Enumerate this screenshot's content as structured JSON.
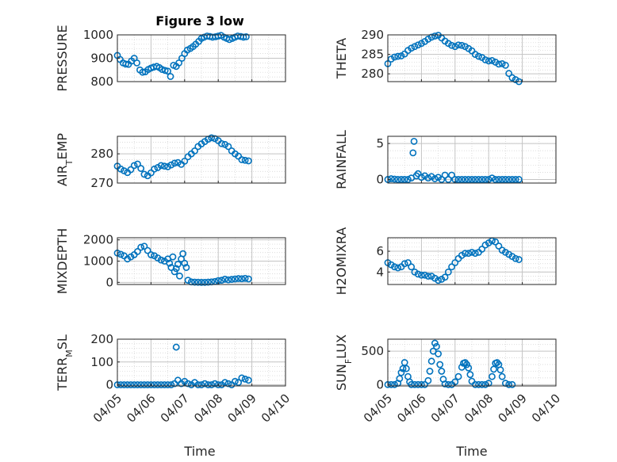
{
  "figure": {
    "title": "Figure 3 low",
    "x_axis_label": "Time",
    "x_tick_labels": [
      "04/05",
      "04/06",
      "04/07",
      "04/08",
      "04/09",
      "04/10"
    ],
    "marker_color": "#0072bd"
  },
  "chart_data": [
    {
      "type": "scatter",
      "ylabel": "PRESSURE",
      "ylim": [
        800,
        1000
      ],
      "yticks": [
        800,
        900,
        1000
      ],
      "grid": true,
      "x": [
        0.0,
        0.08,
        0.17,
        0.25,
        0.33,
        0.42,
        0.5,
        0.58,
        0.67,
        0.75,
        0.83,
        0.92,
        1.0,
        1.08,
        1.17,
        1.25,
        1.33,
        1.42,
        1.5,
        1.58,
        1.67,
        1.75,
        1.83,
        1.92,
        2.0,
        2.08,
        2.17,
        2.25,
        2.33,
        2.42,
        2.5,
        2.58,
        2.67,
        2.75,
        2.83,
        2.92,
        3.0,
        3.08,
        3.17,
        3.25,
        3.33,
        3.42,
        3.5,
        3.58,
        3.67,
        3.75,
        3.83
      ],
      "values": [
        912,
        895,
        880,
        875,
        874,
        888,
        900,
        880,
        850,
        840,
        842,
        852,
        858,
        862,
        865,
        860,
        852,
        848,
        845,
        822,
        870,
        865,
        880,
        900,
        920,
        935,
        942,
        950,
        960,
        972,
        985,
        990,
        995,
        993,
        990,
        992,
        995,
        998,
        990,
        985,
        980,
        985,
        990,
        995,
        993,
        990,
        992
      ]
    },
    {
      "type": "scatter",
      "ylabel": "THETA",
      "ylim": [
        278,
        290
      ],
      "yticks": [
        280,
        285,
        290
      ],
      "grid": true,
      "x": [
        0.0,
        0.1,
        0.2,
        0.3,
        0.4,
        0.5,
        0.6,
        0.7,
        0.8,
        0.9,
        1.0,
        1.1,
        1.2,
        1.3,
        1.4,
        1.5,
        1.6,
        1.7,
        1.8,
        1.9,
        2.0,
        2.1,
        2.2,
        2.3,
        2.4,
        2.5,
        2.6,
        2.7,
        2.8,
        2.9,
        3.0,
        3.1,
        3.2,
        3.3,
        3.4,
        3.5,
        3.6,
        3.7,
        3.8,
        3.9
      ],
      "values": [
        282.6,
        283.8,
        284.3,
        284.5,
        284.6,
        285.1,
        286.0,
        286.6,
        287.0,
        287.4,
        287.8,
        288.3,
        288.9,
        289.4,
        289.7,
        289.9,
        289.2,
        288.4,
        287.8,
        287.3,
        287.0,
        287.4,
        287.3,
        287.0,
        286.5,
        285.9,
        285.0,
        284.5,
        284.2,
        283.6,
        283.3,
        283.4,
        283.0,
        282.5,
        282.6,
        282.2,
        280.1,
        279.0,
        278.5,
        278.0
      ]
    },
    {
      "type": "scatter",
      "ylabel": "AIR_TEMP",
      "ylim": [
        270,
        286
      ],
      "yticks": [
        270,
        280
      ],
      "grid": true,
      "x": [
        0.0,
        0.1,
        0.2,
        0.3,
        0.4,
        0.5,
        0.6,
        0.7,
        0.8,
        0.9,
        1.0,
        1.1,
        1.2,
        1.3,
        1.4,
        1.5,
        1.6,
        1.7,
        1.8,
        1.9,
        2.0,
        2.1,
        2.2,
        2.3,
        2.4,
        2.5,
        2.6,
        2.7,
        2.8,
        2.9,
        3.0,
        3.1,
        3.2,
        3.3,
        3.4,
        3.5,
        3.6,
        3.7,
        3.8,
        3.9
      ],
      "values": [
        275.8,
        274.8,
        274.2,
        273.6,
        274.6,
        276.0,
        276.5,
        275.0,
        273.0,
        272.5,
        273.5,
        274.8,
        275.3,
        276.0,
        275.8,
        275.6,
        276.2,
        276.8,
        277.0,
        276.4,
        277.5,
        279.0,
        280.0,
        281.0,
        282.5,
        283.4,
        284.2,
        285.0,
        285.5,
        285.2,
        284.5,
        283.5,
        283.2,
        282.5,
        281.0,
        280.0,
        279.2,
        278.0,
        277.8,
        277.6
      ]
    },
    {
      "type": "scatter",
      "ylabel": "RAINFALL",
      "ylim": [
        -0.5,
        6
      ],
      "yticks": [
        0,
        5
      ],
      "grid": true,
      "x": [
        0.0,
        0.1,
        0.2,
        0.3,
        0.4,
        0.5,
        0.6,
        0.7,
        0.75,
        0.78,
        0.85,
        0.9,
        1.0,
        1.1,
        1.2,
        1.3,
        1.4,
        1.5,
        1.6,
        1.7,
        1.8,
        1.9,
        2.0,
        2.1,
        2.2,
        2.3,
        2.4,
        2.5,
        2.6,
        2.7,
        2.8,
        2.9,
        3.0,
        3.1,
        3.2,
        3.3,
        3.4,
        3.5,
        3.6,
        3.7,
        3.8,
        3.9
      ],
      "values": [
        0.0,
        0.1,
        0.05,
        0.0,
        0.0,
        0.0,
        0.0,
        0.2,
        3.7,
        5.3,
        0.5,
        0.8,
        0.3,
        0.5,
        0.2,
        0.4,
        0.1,
        0.3,
        0.0,
        0.6,
        0.0,
        0.6,
        0.0,
        0.0,
        0.0,
        0.0,
        0.0,
        0.0,
        0.0,
        0.0,
        0.0,
        0.0,
        0.0,
        0.2,
        0.0,
        0.0,
        0.0,
        0.0,
        0.0,
        0.0,
        0.0,
        0.0
      ]
    },
    {
      "type": "scatter",
      "ylabel": "MIXDEPTH",
      "ylim": [
        -100,
        2100
      ],
      "yticks": [
        0,
        1000,
        2000
      ],
      "grid": true,
      "x": [
        0.0,
        0.1,
        0.2,
        0.3,
        0.4,
        0.5,
        0.6,
        0.7,
        0.8,
        0.9,
        1.0,
        1.1,
        1.2,
        1.3,
        1.4,
        1.5,
        1.55,
        1.6,
        1.65,
        1.7,
        1.75,
        1.8,
        1.85,
        1.9,
        1.95,
        2.0,
        2.05,
        2.1,
        2.2,
        2.3,
        2.4,
        2.5,
        2.6,
        2.7,
        2.8,
        2.9,
        3.0,
        3.1,
        3.2,
        3.3,
        3.4,
        3.5,
        3.6,
        3.7,
        3.8,
        3.9
      ],
      "values": [
        1380,
        1320,
        1250,
        1100,
        1200,
        1300,
        1450,
        1650,
        1700,
        1500,
        1300,
        1250,
        1150,
        1050,
        1000,
        1100,
        900,
        700,
        1200,
        500,
        650,
        850,
        300,
        1100,
        1350,
        900,
        700,
        100,
        20,
        10,
        5,
        0,
        0,
        10,
        20,
        40,
        80,
        100,
        150,
        120,
        140,
        160,
        180,
        170,
        190,
        160
      ]
    },
    {
      "type": "scatter",
      "ylabel": "H2OMIXRA",
      "ylim": [
        2.8,
        7.3
      ],
      "yticks": [
        4,
        6
      ],
      "grid": true,
      "x": [
        0.0,
        0.1,
        0.2,
        0.3,
        0.4,
        0.5,
        0.6,
        0.7,
        0.8,
        0.9,
        1.0,
        1.1,
        1.2,
        1.3,
        1.4,
        1.5,
        1.6,
        1.7,
        1.8,
        1.9,
        2.0,
        2.1,
        2.2,
        2.3,
        2.4,
        2.5,
        2.6,
        2.7,
        2.8,
        2.9,
        3.0,
        3.1,
        3.2,
        3.3,
        3.4,
        3.5,
        3.6,
        3.7,
        3.8,
        3.9
      ],
      "values": [
        4.9,
        4.7,
        4.5,
        4.4,
        4.5,
        4.8,
        4.9,
        4.5,
        4.0,
        3.8,
        3.7,
        3.7,
        3.6,
        3.6,
        3.4,
        3.2,
        3.3,
        3.5,
        4.0,
        4.5,
        4.9,
        5.3,
        5.6,
        5.8,
        5.8,
        5.9,
        5.8,
        5.9,
        6.2,
        6.6,
        6.8,
        7.0,
        6.9,
        6.5,
        6.1,
        5.9,
        5.7,
        5.5,
        5.3,
        5.2
      ]
    },
    {
      "type": "scatter",
      "ylabel": "TERR_MSL",
      "ylim": [
        -5,
        200
      ],
      "yticks": [
        0,
        100,
        200
      ],
      "grid": true,
      "x": [
        0.0,
        0.1,
        0.2,
        0.3,
        0.4,
        0.5,
        0.6,
        0.7,
        0.8,
        0.9,
        1.0,
        1.1,
        1.2,
        1.3,
        1.4,
        1.5,
        1.6,
        1.7,
        1.75,
        1.8,
        1.9,
        2.0,
        2.1,
        2.2,
        2.3,
        2.4,
        2.5,
        2.6,
        2.7,
        2.8,
        2.9,
        3.0,
        3.1,
        3.2,
        3.3,
        3.4,
        3.5,
        3.6,
        3.7,
        3.8,
        3.9
      ],
      "values": [
        0,
        0,
        0,
        0,
        0,
        0,
        0,
        0,
        0,
        0,
        0,
        0,
        0,
        0,
        0,
        0,
        0,
        5,
        165,
        20,
        5,
        15,
        5,
        0,
        10,
        0,
        0,
        5,
        0,
        0,
        5,
        0,
        0,
        10,
        5,
        0,
        15,
        10,
        30,
        25,
        20
      ]
    },
    {
      "type": "scatter",
      "ylabel": "SUN_FLUX",
      "ylim": [
        -20,
        680
      ],
      "yticks": [
        0,
        500
      ],
      "grid": true,
      "x": [
        0.0,
        0.1,
        0.2,
        0.3,
        0.35,
        0.4,
        0.45,
        0.5,
        0.55,
        0.6,
        0.65,
        0.7,
        0.8,
        0.9,
        1.0,
        1.1,
        1.2,
        1.25,
        1.3,
        1.35,
        1.4,
        1.45,
        1.5,
        1.55,
        1.6,
        1.65,
        1.7,
        1.8,
        1.9,
        2.0,
        2.1,
        2.2,
        2.25,
        2.3,
        2.35,
        2.4,
        2.45,
        2.5,
        2.6,
        2.7,
        2.8,
        2.9,
        3.0,
        3.1,
        3.15,
        3.2,
        3.25,
        3.3,
        3.35,
        3.4,
        3.5,
        3.6,
        3.7
      ],
      "values": [
        0,
        0,
        0,
        20,
        90,
        180,
        240,
        330,
        240,
        120,
        40,
        0,
        0,
        0,
        0,
        0,
        60,
        200,
        350,
        500,
        620,
        570,
        460,
        300,
        200,
        80,
        10,
        0,
        0,
        40,
        120,
        260,
        320,
        330,
        300,
        250,
        150,
        50,
        0,
        0,
        0,
        0,
        20,
        120,
        230,
        320,
        330,
        300,
        220,
        120,
        20,
        0,
        0
      ]
    }
  ]
}
